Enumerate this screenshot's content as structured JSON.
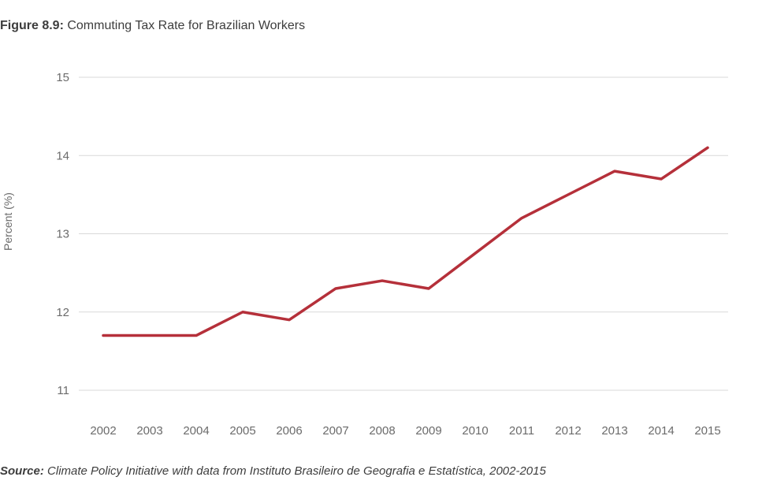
{
  "figure": {
    "label": "Figure 8.9:",
    "title": " Commuting Tax Rate for Brazilian Workers"
  },
  "source": {
    "label": "Source:",
    "text": " Climate Policy Initiative with data from Instituto Brasileiro de Geografia e Estatística, 2002-2015"
  },
  "colors": {
    "line": "#b5303a",
    "grid": "#d9d9d9",
    "text": "#6b6b6b"
  },
  "chart_data": {
    "type": "line",
    "title": "Commuting Tax Rate for Brazilian Workers",
    "xlabel": "",
    "ylabel": "Percent (%)",
    "x": [
      "2002",
      "2003",
      "2004",
      "2005",
      "2006",
      "2007",
      "2008",
      "2009",
      "2010",
      "2011",
      "2012",
      "2013",
      "2014",
      "2015"
    ],
    "series": [
      {
        "values": [
          11.7,
          11.7,
          11.7,
          12.0,
          11.9,
          12.3,
          12.4,
          12.3,
          12.75,
          13.2,
          13.5,
          13.8,
          13.7,
          14.1
        ]
      }
    ],
    "yticks": [
      11,
      12,
      13,
      14,
      15
    ],
    "ylim": [
      11,
      15
    ],
    "grid": true,
    "legend": "none"
  }
}
